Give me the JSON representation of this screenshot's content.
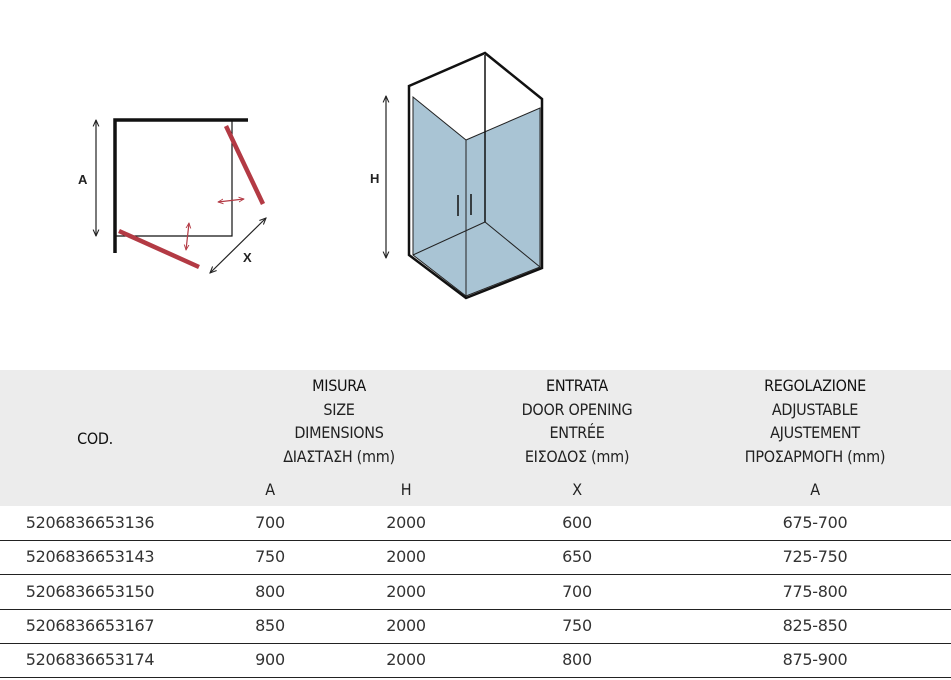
{
  "diagram": {
    "label_a": "A",
    "label_x": "X",
    "label_h": "H",
    "door_color": "#b33a44",
    "glass_color": "#a9c4d4"
  },
  "table": {
    "cod_header": "COD.",
    "size_header": [
      "MISURA",
      "SIZE",
      "DIMENSIONS",
      "ΔΙΑΣΤΑΣΗ (mm)"
    ],
    "opening_header": [
      "ENTRATA",
      "DOOR OPENING",
      "ENTRÉE",
      "ΕΙΣΟΔΟΣ (mm)"
    ],
    "adjust_header": [
      "REGOLAZIONE",
      "ADJUSTABLE",
      "AJUSTEMENT",
      "ΠΡΟΣΑΡΜΟΓΗ (mm)"
    ],
    "sub_headers": [
      "A",
      "H",
      "X",
      "A"
    ],
    "rows": [
      [
        "5206836653136",
        "700",
        "2000",
        "600",
        "675-700"
      ],
      [
        "5206836653143",
        "750",
        "2000",
        "650",
        "725-750"
      ],
      [
        "5206836653150",
        "800",
        "2000",
        "700",
        "775-800"
      ],
      [
        "5206836653167",
        "850",
        "2000",
        "750",
        "825-850"
      ],
      [
        "5206836653174",
        "900",
        "2000",
        "800",
        "875-900"
      ]
    ]
  }
}
